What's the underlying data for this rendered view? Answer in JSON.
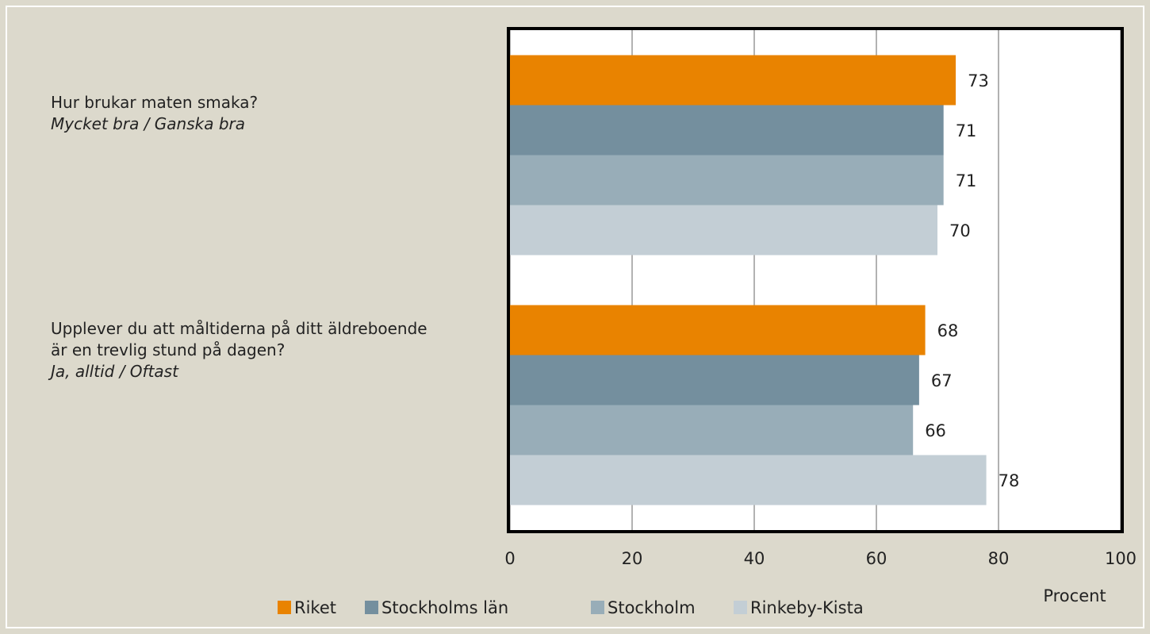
{
  "chart_data": {
    "type": "barh",
    "categories": [
      "Hur brukar maten smaka?",
      "Upplever du att måltiderna på ditt äldreboende är en trevlig stund på dagen?"
    ],
    "category_notes": [
      "Mycket bra / Ganska bra",
      "Ja, alltid / Oftast"
    ],
    "series": [
      {
        "name": "Riket",
        "color": "#e98300",
        "values": [
          73,
          68
        ]
      },
      {
        "name": "Stockholms län",
        "color": "#748f9e",
        "values": [
          71,
          67
        ]
      },
      {
        "name": "Stockholm",
        "color": "#98adb8",
        "values": [
          71,
          66
        ]
      },
      {
        "name": "Rinkeby-Kista",
        "color": "#c3ced5",
        "values": [
          70,
          78
        ]
      }
    ],
    "xlabel": "Procent",
    "xlim": [
      0,
      100
    ],
    "xticks": [
      0,
      20,
      40,
      60,
      80,
      100
    ],
    "grid": true,
    "legend": "bottom"
  }
}
